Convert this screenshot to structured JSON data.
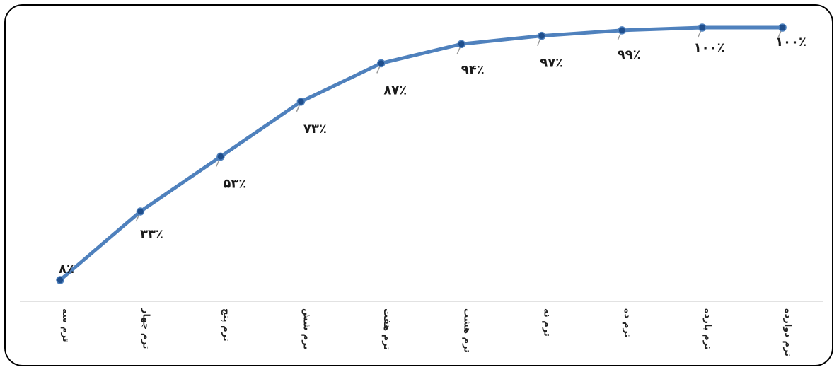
{
  "chart_data": {
    "type": "line",
    "categories": [
      "ترم سه",
      "ترم چهار",
      "ترم پنج",
      "ترم شش",
      "ترم هفت",
      "ترم هشت",
      "ترم نه",
      "ترم ده",
      "ترم یازده",
      "ترم دوازده"
    ],
    "values": [
      8,
      33,
      53,
      73,
      87,
      94,
      97,
      99,
      100,
      100
    ],
    "data_labels": [
      "۸٪",
      "۳۳٪",
      "۵۳٪",
      "۷۳٪",
      "۸۷٪",
      "۹۴٪",
      "۹۷٪",
      "۹۹٪",
      "۱۰۰٪",
      "۱۰۰٪"
    ],
    "title": "",
    "xlabel": "",
    "ylabel": "",
    "ylim": [
      0,
      100
    ],
    "grid": false,
    "legend": "none",
    "colors": {
      "line": "#4f81bd",
      "marker": "#1f4e8c",
      "axis": "#d9d9d9"
    }
  }
}
